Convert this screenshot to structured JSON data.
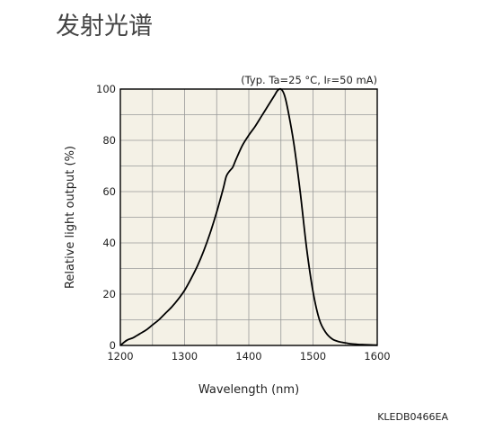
{
  "page": {
    "title": "发射光谱"
  },
  "chart_data": {
    "type": "line",
    "conditions": "(Typ. Ta=25 °C, IF=50 mA)",
    "conditions_parts": [
      "(Typ. Ta=25 °C, I",
      "F",
      "=50 mA)"
    ],
    "xlabel": "Wavelength (nm)",
    "ylabel": "Relative light output (%)",
    "xlim": [
      1200,
      1600
    ],
    "ylim": [
      0,
      100
    ],
    "xticks": [
      1200,
      1300,
      1400,
      1500,
      1600
    ],
    "yticks": [
      0,
      20,
      40,
      60,
      80,
      100
    ],
    "x_minor_step": 50,
    "y_minor_step": 10,
    "grid": true,
    "plot_bg": "#f4f1e6",
    "grid_color": "#999999",
    "line_color": "#000000",
    "doc_code": "KLEDB0466EA",
    "series": [
      {
        "x": [
          1200,
          1210,
          1220,
          1230,
          1240,
          1250,
          1260,
          1270,
          1280,
          1290,
          1300,
          1310,
          1320,
          1330,
          1340,
          1350,
          1360,
          1365,
          1370,
          1375,
          1380,
          1390,
          1400,
          1410,
          1420,
          1430,
          1440,
          1445,
          1450,
          1455,
          1460,
          1470,
          1480,
          1490,
          1500,
          1510,
          1520,
          1530,
          1540,
          1550,
          1560,
          1570,
          1580,
          1590,
          1600
        ],
        "y": [
          0,
          2,
          3,
          4.5,
          6,
          8,
          10,
          12.5,
          15,
          18,
          21.5,
          26,
          31,
          37,
          44,
          52,
          61,
          66,
          68,
          69.5,
          72.5,
          78,
          82,
          85.5,
          89.5,
          93.5,
          97.5,
          99.5,
          100,
          98,
          93,
          79,
          60,
          38,
          21,
          10,
          5,
          2.5,
          1.5,
          1,
          0.6,
          0.4,
          0.3,
          0.2,
          0.1
        ]
      }
    ]
  }
}
